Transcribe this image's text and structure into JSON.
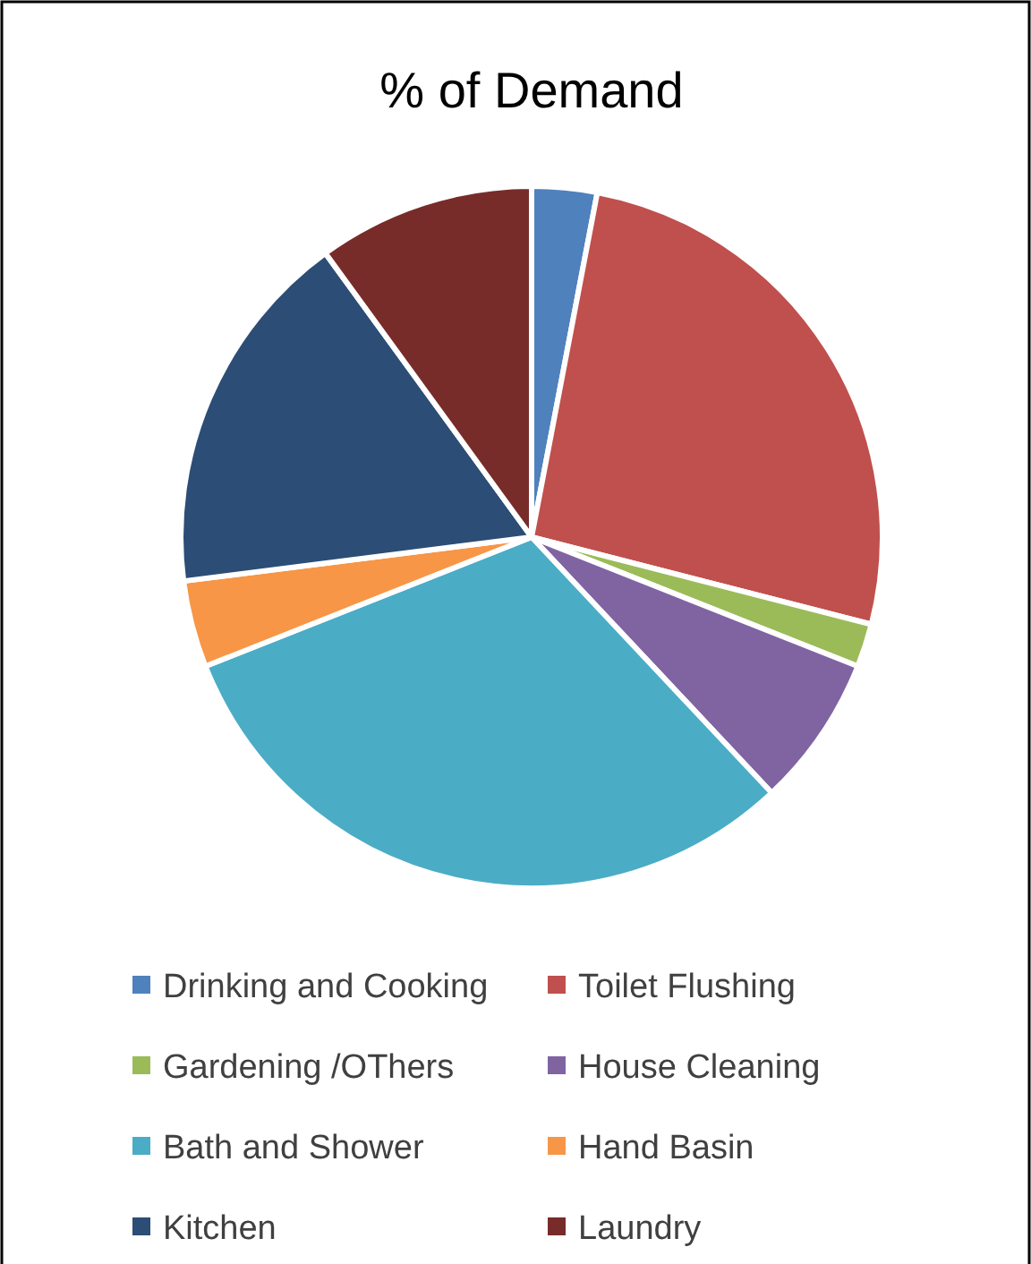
{
  "chart_data": {
    "type": "pie",
    "title": "% of Demand",
    "categories": [
      "Drinking and Cooking",
      "Toilet Flushing",
      "Gardening /OThers",
      "House Cleaning",
      "Bath and Shower",
      "Hand Basin",
      "Kitchen",
      "Laundry"
    ],
    "values": [
      3,
      26,
      2,
      7,
      31,
      4,
      17,
      10
    ],
    "colors": [
      "#4f81bd",
      "#c0504d",
      "#9bbb59",
      "#8064a2",
      "#4bacc6",
      "#f79646",
      "#2c4d75",
      "#772c2a"
    ],
    "legend": "bottom"
  }
}
